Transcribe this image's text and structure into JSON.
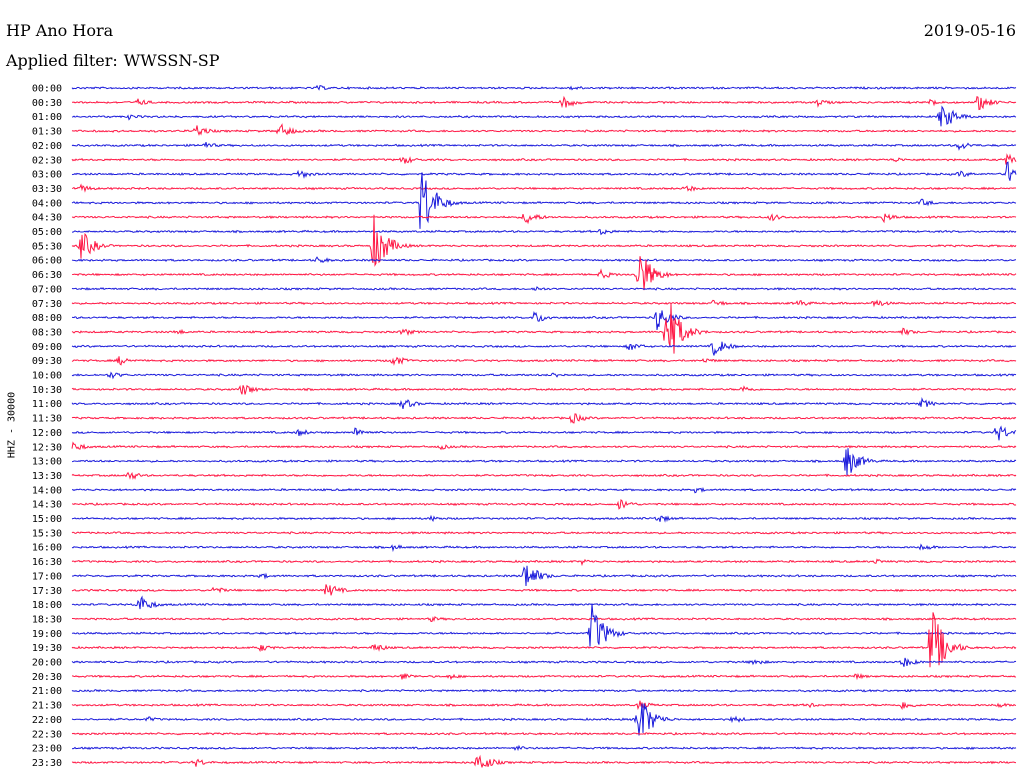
{
  "header": {
    "station": "HP Ano Hora",
    "date": "2019-05-16",
    "filter_label": "Applied filter:",
    "filter_name": "WWSSN-SP"
  },
  "channel_label": "HHZ - 30000",
  "colors": {
    "trace_a": "#1a1adb",
    "trace_b": "#ff1744",
    "text": "#000000",
    "background": "#ffffff"
  },
  "chart_data": {
    "type": "helicorder",
    "rows": [
      {
        "time": "00:00",
        "color": "blue",
        "events": [
          [
            0.26,
            3
          ],
          [
            0.53,
            3
          ]
        ]
      },
      {
        "time": "00:30",
        "color": "red",
        "events": [
          [
            0.07,
            4
          ],
          [
            0.52,
            7
          ],
          [
            0.79,
            4
          ],
          [
            0.91,
            4
          ],
          [
            0.96,
            9
          ]
        ]
      },
      {
        "time": "01:00",
        "color": "blue",
        "events": [
          [
            0.06,
            3
          ],
          [
            0.92,
            14
          ],
          [
            0.93,
            8
          ]
        ]
      },
      {
        "time": "01:30",
        "color": "red",
        "events": [
          [
            0.13,
            7
          ],
          [
            0.22,
            8
          ]
        ]
      },
      {
        "time": "02:00",
        "color": "blue",
        "events": [
          [
            0.14,
            4
          ],
          [
            0.94,
            5
          ]
        ]
      },
      {
        "time": "02:30",
        "color": "red",
        "events": [
          [
            0.35,
            5
          ],
          [
            0.87,
            3
          ],
          [
            0.99,
            6
          ]
        ]
      },
      {
        "time": "03:00",
        "color": "blue",
        "events": [
          [
            0.24,
            5
          ],
          [
            0.94,
            4
          ],
          [
            0.99,
            14
          ]
        ]
      },
      {
        "time": "03:30",
        "color": "red",
        "events": [
          [
            0.01,
            4
          ],
          [
            0.65,
            4
          ]
        ]
      },
      {
        "time": "04:00",
        "color": "blue",
        "events": [
          [
            0.37,
            42
          ],
          [
            0.9,
            4
          ]
        ]
      },
      {
        "time": "04:30",
        "color": "red",
        "events": [
          [
            0.48,
            8
          ],
          [
            0.74,
            4
          ],
          [
            0.86,
            5
          ]
        ]
      },
      {
        "time": "05:00",
        "color": "blue",
        "events": [
          [
            0.56,
            4
          ]
        ]
      },
      {
        "time": "05:30",
        "color": "red",
        "events": [
          [
            0.01,
            16
          ],
          [
            0.32,
            32
          ]
        ]
      },
      {
        "time": "06:00",
        "color": "blue",
        "events": [
          [
            0.26,
            4
          ]
        ]
      },
      {
        "time": "06:30",
        "color": "red",
        "events": [
          [
            0.56,
            5
          ],
          [
            0.6,
            30
          ]
        ]
      },
      {
        "time": "07:00",
        "color": "blue",
        "events": [
          [
            0.49,
            3
          ]
        ]
      },
      {
        "time": "07:30",
        "color": "red",
        "events": [
          [
            0.68,
            4
          ],
          [
            0.77,
            4
          ],
          [
            0.85,
            5
          ]
        ]
      },
      {
        "time": "08:00",
        "color": "blue",
        "events": [
          [
            0.49,
            7
          ],
          [
            0.62,
            14
          ]
        ]
      },
      {
        "time": "08:30",
        "color": "red",
        "events": [
          [
            0.11,
            3
          ],
          [
            0.35,
            4
          ],
          [
            0.63,
            42
          ],
          [
            0.88,
            4
          ]
        ]
      },
      {
        "time": "09:00",
        "color": "blue",
        "events": [
          [
            0.59,
            5
          ],
          [
            0.68,
            10
          ]
        ]
      },
      {
        "time": "09:30",
        "color": "red",
        "events": [
          [
            0.05,
            5
          ],
          [
            0.34,
            6
          ],
          [
            0.67,
            3
          ]
        ]
      },
      {
        "time": "10:00",
        "color": "blue",
        "events": [
          [
            0.04,
            4
          ],
          [
            0.51,
            3
          ]
        ]
      },
      {
        "time": "10:30",
        "color": "red",
        "events": [
          [
            0.18,
            7
          ],
          [
            0.71,
            4
          ]
        ]
      },
      {
        "time": "11:00",
        "color": "blue",
        "events": [
          [
            0.35,
            6
          ],
          [
            0.9,
            5
          ]
        ]
      },
      {
        "time": "11:30",
        "color": "red",
        "events": [
          [
            0.53,
            6
          ]
        ]
      },
      {
        "time": "12:00",
        "color": "blue",
        "events": [
          [
            0.24,
            4
          ],
          [
            0.3,
            5
          ],
          [
            0.98,
            10
          ]
        ]
      },
      {
        "time": "12:30",
        "color": "red",
        "events": [
          [
            0.0,
            6
          ],
          [
            0.39,
            3
          ]
        ]
      },
      {
        "time": "13:00",
        "color": "blue",
        "events": [
          [
            0.82,
            18
          ]
        ]
      },
      {
        "time": "13:30",
        "color": "red",
        "events": [
          [
            0.06,
            5
          ]
        ]
      },
      {
        "time": "14:00",
        "color": "blue",
        "events": [
          [
            0.66,
            3
          ]
        ]
      },
      {
        "time": "14:30",
        "color": "red",
        "events": [
          [
            0.58,
            6
          ]
        ]
      },
      {
        "time": "15:00",
        "color": "blue",
        "events": [
          [
            0.38,
            3
          ],
          [
            0.62,
            5
          ]
        ]
      },
      {
        "time": "15:30",
        "color": "red",
        "events": []
      },
      {
        "time": "16:00",
        "color": "blue",
        "events": [
          [
            0.34,
            3
          ],
          [
            0.9,
            4
          ]
        ]
      },
      {
        "time": "16:30",
        "color": "red",
        "events": [
          [
            0.54,
            3
          ],
          [
            0.85,
            3
          ]
        ]
      },
      {
        "time": "17:00",
        "color": "blue",
        "events": [
          [
            0.48,
            16
          ],
          [
            0.2,
            3
          ]
        ]
      },
      {
        "time": "17:30",
        "color": "red",
        "events": [
          [
            0.15,
            4
          ],
          [
            0.27,
            8
          ]
        ]
      },
      {
        "time": "18:00",
        "color": "blue",
        "events": [
          [
            0.07,
            11
          ]
        ]
      },
      {
        "time": "18:30",
        "color": "red",
        "events": [
          [
            0.38,
            3
          ]
        ]
      },
      {
        "time": "19:00",
        "color": "blue",
        "events": [
          [
            0.55,
            32
          ]
        ]
      },
      {
        "time": "19:30",
        "color": "red",
        "events": [
          [
            0.2,
            4
          ],
          [
            0.32,
            5
          ],
          [
            0.91,
            45
          ]
        ]
      },
      {
        "time": "20:00",
        "color": "blue",
        "events": [
          [
            0.72,
            4
          ],
          [
            0.88,
            6
          ]
        ]
      },
      {
        "time": "20:30",
        "color": "red",
        "events": [
          [
            0.35,
            4
          ],
          [
            0.4,
            3
          ],
          [
            0.83,
            3
          ]
        ]
      },
      {
        "time": "21:00",
        "color": "blue",
        "events": []
      },
      {
        "time": "21:30",
        "color": "red",
        "events": [
          [
            0.6,
            5
          ],
          [
            0.78,
            3
          ],
          [
            0.88,
            5
          ],
          [
            0.98,
            3
          ]
        ]
      },
      {
        "time": "22:00",
        "color": "blue",
        "events": [
          [
            0.08,
            3
          ],
          [
            0.6,
            30
          ],
          [
            0.7,
            4
          ]
        ]
      },
      {
        "time": "22:30",
        "color": "red",
        "events": []
      },
      {
        "time": "23:00",
        "color": "blue",
        "events": [
          [
            0.47,
            3
          ]
        ]
      },
      {
        "time": "23:30",
        "color": "red",
        "events": [
          [
            0.13,
            5
          ],
          [
            0.43,
            12
          ]
        ]
      }
    ]
  }
}
